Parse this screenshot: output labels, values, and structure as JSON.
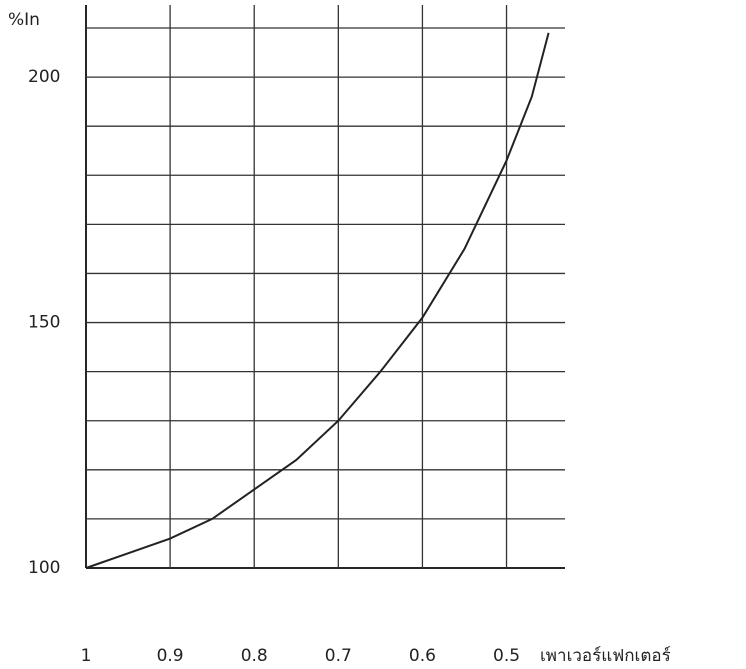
{
  "chart_data": {
    "type": "line",
    "y_label": "%In",
    "x_label": "เพาเวอร์แฟกเตอร์",
    "x": [
      1,
      0.95,
      0.9,
      0.85,
      0.8,
      0.75,
      0.7,
      0.65,
      0.6,
      0.55,
      0.5,
      0.47,
      0.45
    ],
    "values": [
      100,
      103,
      106,
      110,
      116,
      122,
      130,
      140,
      151,
      165,
      183,
      196,
      209
    ],
    "color": "#222",
    "xlim": [
      1,
      0.44
    ],
    "ylim": [
      100,
      210
    ],
    "xticks": [
      1,
      0.9,
      0.8,
      0.7,
      0.6,
      0.5
    ],
    "yticks": [
      100,
      150,
      200
    ],
    "minor_yticks": [
      110,
      120,
      130,
      140,
      160,
      170,
      180,
      190,
      210
    ],
    "grid": true
  }
}
